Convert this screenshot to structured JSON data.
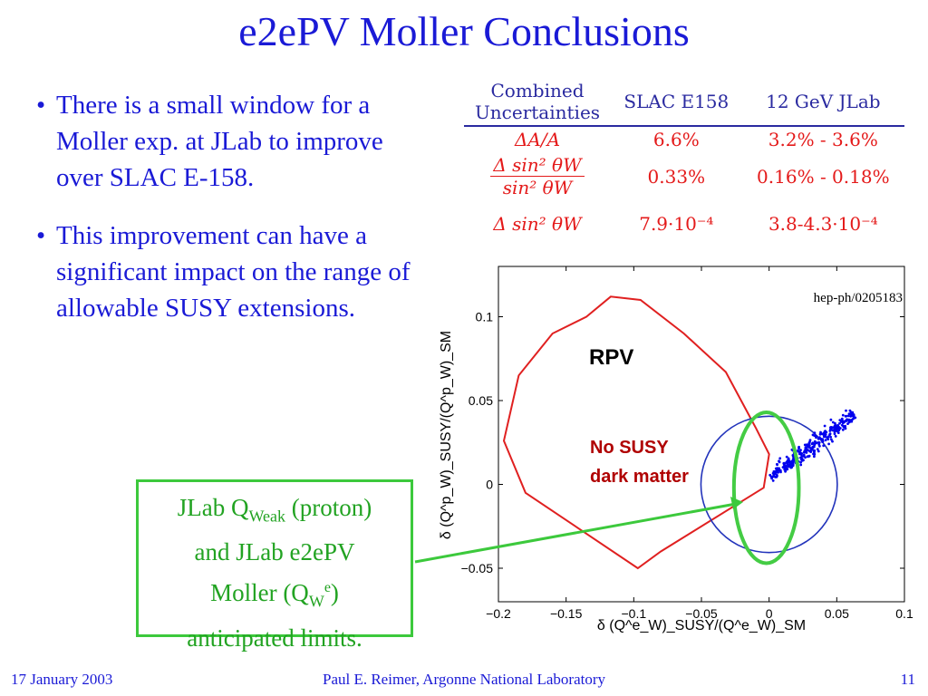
{
  "slide": {
    "title": "e2ePV Moller Conclusions",
    "bullets": [
      "There is a small window for a Moller exp. at JLab to improve over SLAC E-158.",
      "This improvement can have a significant impact on the range of allowable SUSY extensions."
    ],
    "bullet_marker": "•"
  },
  "table": {
    "headers": [
      "Combined Uncertainties",
      "SLAC E158",
      "12 GeV JLab"
    ],
    "rows": [
      {
        "label": "ΔA/A",
        "slac": "6.6%",
        "jlab": "3.2% - 3.6%"
      },
      {
        "label_num": "Δ sin² θW",
        "label_den": "sin² θW",
        "slac": "0.33%",
        "jlab": "0.16% - 0.18%"
      },
      {
        "label": "Δ sin² θW",
        "slac": "7.9·10⁻⁴",
        "jlab": "3.8-4.3·10⁻⁴"
      }
    ]
  },
  "chart_data": {
    "type": "scatter",
    "citation": "hep-ph/0205183",
    "xlabel": "δ (Q^e_W)_SUSY/(Q^e_W)_SM",
    "ylabel": "δ (Q^p_W)_SUSY/(Q^p_W)_SM",
    "xlim": [
      -0.2,
      0.1
    ],
    "ylim": [
      -0.07,
      0.13
    ],
    "xticks": [
      "−0.2",
      "−0.15",
      "−0.1",
      "−0.05",
      "0",
      "0.05",
      "0.1"
    ],
    "xtick_values": [
      -0.2,
      -0.15,
      -0.1,
      -0.05,
      0,
      0.05,
      0.1
    ],
    "yticks": [
      "−0.05",
      "0",
      "0.05",
      "0.1"
    ],
    "ytick_values": [
      -0.05,
      0,
      0.05,
      0.1
    ],
    "annotations": [
      "RPV",
      "No SUSY dark matter"
    ],
    "rpv_region": [
      [
        -0.135,
        0.1
      ],
      [
        -0.117,
        0.112
      ],
      [
        -0.095,
        0.11
      ],
      [
        -0.063,
        0.09
      ],
      [
        -0.032,
        0.067
      ],
      [
        -0.01,
        0.034
      ],
      [
        0,
        0.018
      ],
      [
        -0.004,
        -0.002
      ],
      [
        -0.08,
        -0.04
      ],
      [
        -0.097,
        -0.05
      ],
      [
        -0.18,
        -0.005
      ],
      [
        -0.196,
        0.026
      ],
      [
        -0.185,
        0.065
      ],
      [
        -0.16,
        0.09
      ],
      [
        -0.135,
        0.1
      ]
    ],
    "circle": {
      "cx": 0,
      "cy": 0,
      "r": 0.045
    },
    "ellipse": {
      "cx": -0.002,
      "cy": -0.002,
      "rx": 0.024,
      "ry": 0.045
    },
    "points_band": {
      "from": [
        0.002,
        0.005
      ],
      "to": [
        0.063,
        0.042
      ],
      "count": 320
    },
    "colors": {
      "rpv": "#e02020",
      "circle": "#2233bb",
      "ellipse": "#44cc44",
      "points": "#0000ee",
      "rpv_label": "#000000",
      "nosusy_label": "#b00000"
    }
  },
  "callout": {
    "line1_main": "JLab Q",
    "line1_sub": "Weak",
    "line1_rest": " (proton)",
    "line2": "and JLab e2ePV",
    "line3_main": "Moller (Q",
    "line3_sub": "W",
    "line3_sup": "e",
    "line3_rest": ")",
    "line4": "anticipated limits.",
    "color": "#3cc93c"
  },
  "footer": {
    "date": "17 January 2003",
    "author": "Paul E. Reimer, Argonne National Laboratory",
    "page": "11"
  }
}
